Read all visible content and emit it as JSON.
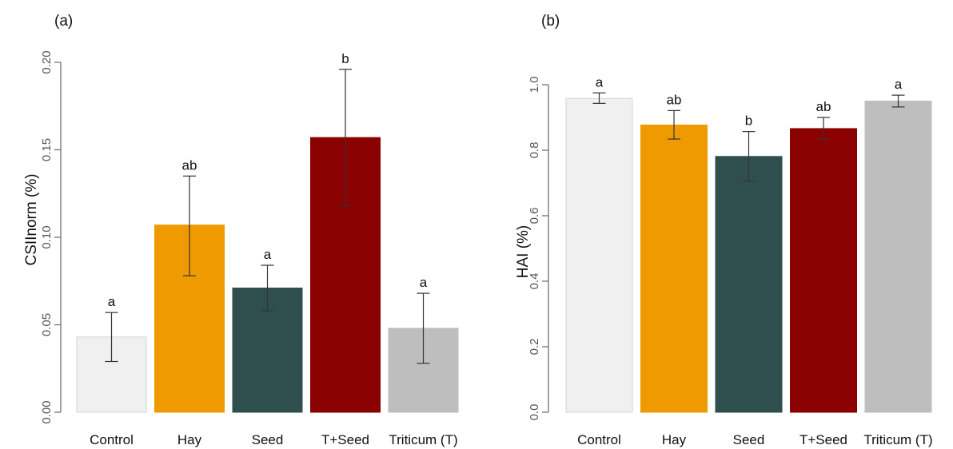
{
  "colors": {
    "Control": "#f0f0f0",
    "Hay": "#ee9a00",
    "Seed": "#2f4f4f",
    "T+Seed": "#8b0000",
    "Triticum (T)": "#bebebe",
    "axis": "#666666",
    "errorbar": "#333333"
  },
  "chart_data": [
    {
      "type": "bar",
      "panel_label": "(a)",
      "ylabel": "CSIInorm (%)",
      "categories": [
        "Control",
        "Hay",
        "Seed",
        "T+Seed",
        "Triticum (T)"
      ],
      "values": [
        0.043,
        0.107,
        0.071,
        0.157,
        0.048
      ],
      "error_low": [
        0.029,
        0.078,
        0.058,
        0.118,
        0.028
      ],
      "error_high": [
        0.057,
        0.135,
        0.084,
        0.196,
        0.068
      ],
      "significance": [
        "a",
        "ab",
        "a",
        "b",
        "a"
      ],
      "ylim": [
        0,
        0.2
      ],
      "yticks": [
        "0.00",
        "0.05",
        "0.10",
        "0.15",
        "0.20"
      ],
      "ytick_values": [
        0,
        0.05,
        0.1,
        0.15,
        0.2
      ],
      "grid": false
    },
    {
      "type": "bar",
      "panel_label": "(b)",
      "ylabel": "HAI (%)",
      "categories": [
        "Control",
        "Hay",
        "Seed",
        "T+Seed",
        "Triticum (T)"
      ],
      "values": [
        0.958,
        0.877,
        0.781,
        0.866,
        0.95
      ],
      "error_low": [
        0.943,
        0.834,
        0.705,
        0.834,
        0.932
      ],
      "error_high": [
        0.975,
        0.921,
        0.857,
        0.9,
        0.968
      ],
      "significance": [
        "a",
        "ab",
        "b",
        "ab",
        "a"
      ],
      "ylim": [
        0,
        1.0
      ],
      "yticks": [
        "0.0",
        "0.2",
        "0.4",
        "0.6",
        "0.8",
        "1.0"
      ],
      "ytick_values": [
        0,
        0.2,
        0.4,
        0.6,
        0.8,
        1.0
      ],
      "grid": false
    }
  ]
}
